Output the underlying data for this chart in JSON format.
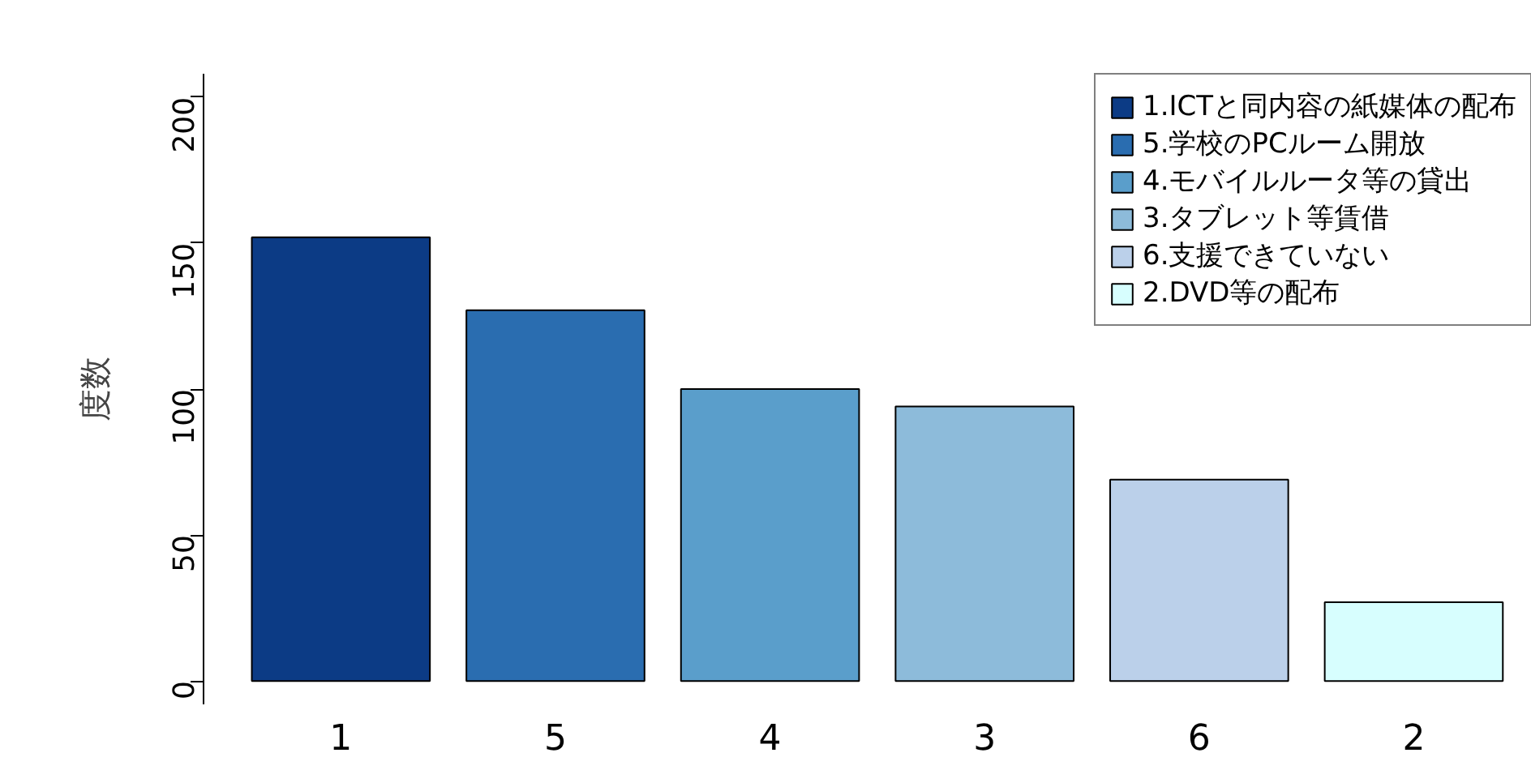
{
  "chart_data": {
    "type": "bar",
    "ylabel": "度数",
    "categories": [
      "1",
      "5",
      "4",
      "3",
      "6",
      "2"
    ],
    "series": [
      {
        "name": "1.ICTと同内容の紙媒体の配布",
        "color": "#0c3b85",
        "values": [
          152,
          null,
          null,
          null,
          null,
          null
        ]
      },
      {
        "name": "5.学校のPCルーム開放",
        "color": "#2a6db0",
        "values": [
          null,
          127,
          null,
          null,
          null,
          null
        ]
      },
      {
        "name": "4.モバイルルータ等の貸出",
        "color": "#5a9ecb",
        "values": [
          null,
          null,
          100,
          null,
          null,
          null
        ]
      },
      {
        "name": "3.タブレット等賃借",
        "color": "#8dbbda",
        "values": [
          null,
          null,
          null,
          94,
          null,
          null
        ]
      },
      {
        "name": "6.支援できていない",
        "color": "#bbd0ea",
        "values": [
          null,
          null,
          null,
          null,
          69,
          null
        ]
      },
      {
        "name": "2.DVD等の配布",
        "color": "#d7fefe",
        "values": [
          null,
          null,
          null,
          null,
          null,
          27
        ]
      }
    ],
    "ylim": [
      -8,
      208
    ],
    "yticks": [
      0,
      50,
      100,
      150,
      200
    ],
    "grid": false,
    "legend": "top right"
  }
}
